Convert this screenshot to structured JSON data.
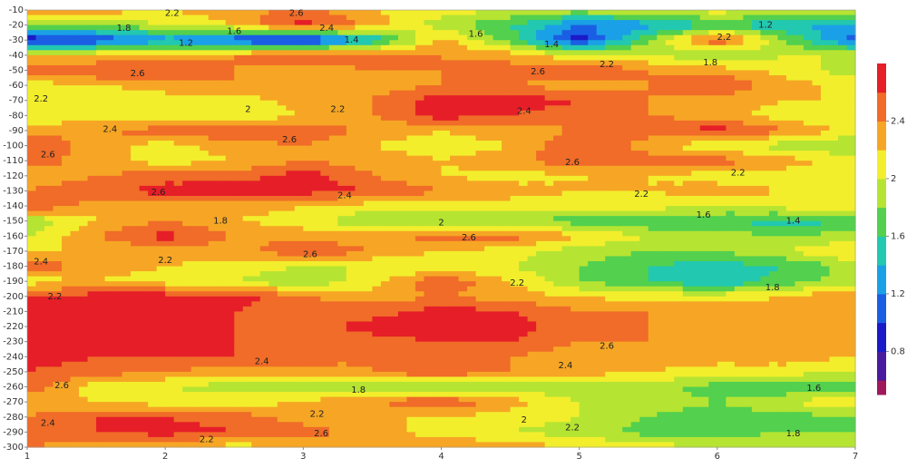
{
  "chart_data": {
    "type": "contour",
    "x": [
      1,
      1.5,
      2,
      2.5,
      3,
      3.5,
      4,
      4.5,
      5,
      5.5,
      6,
      6.5,
      7
    ],
    "y": [
      -10,
      -20,
      -30,
      -40,
      -50,
      -60,
      -70,
      -80,
      -90,
      -100,
      -110,
      -120,
      -130,
      -140,
      -150,
      -160,
      -170,
      -180,
      -190,
      -200,
      -210,
      -220,
      -230,
      -240,
      -250,
      -260,
      -270,
      -280,
      -290,
      -300
    ],
    "z": [
      [
        2.3,
        2.3,
        2.2,
        2.3,
        2.5,
        2.2,
        2.1,
        2.0,
        1.9,
        2.0,
        2.1,
        2.0,
        2.0
      ],
      [
        1.9,
        1.8,
        2.0,
        2.2,
        2.7,
        2.3,
        1.9,
        1.6,
        1.2,
        1.3,
        1.6,
        1.4,
        1.3
      ],
      [
        0.8,
        1.0,
        1.3,
        1.0,
        0.8,
        1.4,
        2.3,
        1.7,
        0.9,
        1.8,
        2.6,
        1.8,
        1.1
      ],
      [
        2.2,
        2.2,
        2.2,
        2.4,
        2.6,
        2.5,
        2.4,
        2.3,
        2.0,
        2.0,
        1.8,
        2.0,
        2.0
      ],
      [
        2.5,
        2.6,
        2.6,
        2.4,
        2.3,
        2.4,
        2.4,
        2.5,
        2.6,
        2.4,
        2.3,
        2.1,
        1.9
      ],
      [
        2.1,
        2.2,
        2.3,
        2.4,
        2.3,
        2.3,
        2.4,
        2.4,
        2.3,
        2.4,
        2.6,
        2.3,
        2.1
      ],
      [
        2.2,
        2.0,
        2.1,
        2.1,
        2.3,
        2.4,
        2.7,
        2.7,
        2.6,
        2.4,
        2.3,
        2.2,
        2.2
      ],
      [
        2.0,
        2.1,
        2.0,
        2.0,
        2.2,
        2.4,
        2.7,
        2.6,
        2.5,
        2.4,
        2.3,
        2.1,
        2.0
      ],
      [
        2.3,
        2.4,
        2.5,
        2.6,
        2.6,
        2.3,
        2.2,
        2.3,
        2.4,
        2.5,
        2.7,
        2.4,
        2.1
      ],
      [
        2.6,
        2.3,
        2.1,
        2.3,
        2.4,
        2.2,
        2.1,
        2.2,
        2.6,
        2.3,
        2.0,
        1.9,
        1.8
      ],
      [
        2.5,
        2.3,
        2.1,
        2.2,
        2.4,
        2.3,
        2.2,
        2.3,
        2.6,
        2.5,
        2.5,
        2.3,
        2.1
      ],
      [
        2.3,
        2.4,
        2.5,
        2.5,
        2.7,
        2.4,
        2.2,
        2.1,
        2.2,
        2.2,
        2.1,
        2.1,
        2.1
      ],
      [
        2.4,
        2.5,
        2.7,
        2.7,
        2.7,
        2.6,
        2.4,
        2.3,
        2.2,
        2.2,
        2.3,
        2.2,
        2.2
      ],
      [
        2.6,
        2.3,
        2.3,
        2.3,
        2.2,
        2.1,
        2.1,
        2.1,
        2.1,
        2.1,
        2.0,
        2.1,
        2.1
      ],
      [
        1.8,
        2.2,
        2.4,
        2.2,
        2.1,
        1.8,
        1.9,
        1.8,
        1.7,
        1.6,
        1.6,
        1.5,
        1.6
      ],
      [
        2.0,
        2.4,
        2.7,
        2.4,
        2.3,
        2.3,
        2.5,
        2.5,
        2.2,
        2.0,
        1.9,
        1.8,
        1.9
      ],
      [
        2.2,
        2.2,
        2.3,
        2.3,
        2.6,
        2.4,
        2.2,
        2.1,
        1.9,
        1.8,
        1.8,
        2.0,
        2.2
      ],
      [
        2.6,
        2.3,
        2.2,
        2.1,
        2.0,
        2.0,
        2.0,
        2.0,
        1.8,
        1.6,
        1.5,
        1.6,
        1.9
      ],
      [
        2.1,
        2.2,
        2.1,
        2.0,
        1.8,
        2.1,
        2.6,
        2.2,
        1.8,
        1.6,
        1.4,
        1.7,
        1.9
      ],
      [
        2.6,
        2.7,
        2.7,
        2.7,
        2.4,
        2.3,
        2.4,
        2.3,
        2.2,
        2.1,
        2.1,
        2.2,
        2.4
      ],
      [
        2.7,
        2.7,
        2.6,
        2.6,
        2.5,
        2.5,
        2.7,
        2.6,
        2.4,
        2.4,
        2.3,
        2.3,
        2.3
      ],
      [
        2.7,
        2.7,
        2.7,
        2.6,
        2.5,
        2.7,
        2.8,
        2.7,
        2.5,
        2.4,
        2.3,
        2.3,
        2.3
      ],
      [
        2.7,
        2.7,
        2.7,
        2.6,
        2.4,
        2.5,
        2.6,
        2.6,
        2.4,
        2.4,
        2.3,
        2.3,
        2.2
      ],
      [
        2.7,
        2.6,
        2.6,
        2.6,
        2.5,
        2.4,
        2.4,
        2.4,
        2.3,
        2.3,
        2.3,
        2.3,
        2.2
      ],
      [
        2.6,
        2.5,
        2.4,
        2.3,
        2.3,
        2.4,
        2.6,
        2.4,
        2.3,
        2.2,
        2.1,
        2.1,
        2.0
      ],
      [
        2.5,
        2.1,
        2.0,
        1.9,
        1.9,
        1.9,
        1.8,
        1.8,
        1.9,
        1.9,
        1.7,
        1.6,
        1.6
      ],
      [
        2.3,
        2.2,
        2.1,
        2.1,
        2.2,
        2.4,
        2.6,
        2.3,
        2.0,
        1.9,
        1.8,
        2.0,
        2.2
      ],
      [
        2.4,
        2.6,
        2.6,
        2.5,
        2.3,
        2.2,
        2.2,
        2.1,
        2.0,
        1.8,
        1.7,
        1.7,
        1.8
      ],
      [
        2.5,
        2.6,
        2.7,
        2.6,
        2.5,
        2.3,
        2.1,
        2.0,
        1.9,
        1.7,
        1.7,
        1.8,
        1.8
      ],
      [
        2.4,
        2.3,
        2.2,
        2.1,
        2.2,
        2.3,
        2.4,
        2.3,
        2.2,
        2.1,
        2.0,
        2.0,
        1.9
      ]
    ],
    "levels": [
      0.5,
      0.6,
      0.8,
      1.0,
      1.2,
      1.4,
      1.6,
      1.8,
      2.0,
      2.2,
      2.4,
      2.6,
      2.8
    ],
    "colors": [
      "#a0185c",
      "#4a1a9e",
      "#1a1ac8",
      "#1a5ee4",
      "#1aa0e6",
      "#22c8b0",
      "#52d04e",
      "#b6e432",
      "#f2ee2c",
      "#f6a624",
      "#f06c28",
      "#e61e28"
    ],
    "xlim": [
      1,
      7
    ],
    "xticks": [
      1,
      2,
      3,
      4,
      5,
      6,
      7
    ],
    "ylim": [
      -300,
      -10
    ],
    "yticks": [
      -10,
      -20,
      -30,
      -40,
      -50,
      -60,
      -70,
      -80,
      -90,
      -100,
      -110,
      -120,
      -130,
      -140,
      -150,
      -160,
      -170,
      -180,
      -190,
      -200,
      -210,
      -220,
      -230,
      -240,
      -250,
      -260,
      -270,
      -280,
      -290,
      -300
    ],
    "zlim": [
      0.5,
      2.8
    ],
    "zticks": [
      0.8,
      1.2,
      1.6,
      2,
      2.4
    ],
    "contour_labels": [
      {
        "x": 2.05,
        "y": -12,
        "level": 2.2
      },
      {
        "x": 1.7,
        "y": -22,
        "level": 1.8
      },
      {
        "x": 2.5,
        "y": -24,
        "level": 1.6
      },
      {
        "x": 2.95,
        "y": -12,
        "level": 2.6
      },
      {
        "x": 3.17,
        "y": -22,
        "level": 2.4
      },
      {
        "x": 3.35,
        "y": -30,
        "level": 1.4
      },
      {
        "x": 2.15,
        "y": -32,
        "level": 1.2
      },
      {
        "x": 4.25,
        "y": -26,
        "level": 1.6
      },
      {
        "x": 4.8,
        "y": -33,
        "level": 1.4
      },
      {
        "x": 6.35,
        "y": -20,
        "level": 1.2
      },
      {
        "x": 6.05,
        "y": -28,
        "level": 2.2
      },
      {
        "x": 5.95,
        "y": -45,
        "level": 1.8
      },
      {
        "x": 5.2,
        "y": -46,
        "level": 2.2
      },
      {
        "x": 1.8,
        "y": -52,
        "level": 2.6
      },
      {
        "x": 4.7,
        "y": -51,
        "level": 2.6
      },
      {
        "x": 1.1,
        "y": -69,
        "level": 2.2
      },
      {
        "x": 2.6,
        "y": -76,
        "level": 2
      },
      {
        "x": 3.25,
        "y": -76,
        "level": 2.2
      },
      {
        "x": 4.6,
        "y": -77,
        "level": 2.4
      },
      {
        "x": 1.6,
        "y": -89,
        "level": 2.4
      },
      {
        "x": 2.9,
        "y": -96,
        "level": 2.6
      },
      {
        "x": 1.15,
        "y": -106,
        "level": 2.6
      },
      {
        "x": 4.95,
        "y": -111,
        "level": 2.6
      },
      {
        "x": 6.15,
        "y": -118,
        "level": 2.2
      },
      {
        "x": 1.95,
        "y": -131,
        "level": 2.6
      },
      {
        "x": 3.3,
        "y": -133,
        "level": 2.4
      },
      {
        "x": 5.45,
        "y": -132,
        "level": 2.2
      },
      {
        "x": 2.4,
        "y": -150,
        "level": 1.8
      },
      {
        "x": 4,
        "y": -151,
        "level": 2
      },
      {
        "x": 5.9,
        "y": -146,
        "level": 1.6
      },
      {
        "x": 6.55,
        "y": -150,
        "level": 1.4
      },
      {
        "x": 3.05,
        "y": -172,
        "level": 2.6
      },
      {
        "x": 2,
        "y": -176,
        "level": 2.2
      },
      {
        "x": 4.2,
        "y": -161,
        "level": 2.6
      },
      {
        "x": 1.1,
        "y": -177,
        "level": 2.4
      },
      {
        "x": 4.55,
        "y": -191,
        "level": 2.2
      },
      {
        "x": 1.2,
        "y": -200,
        "level": 2.2
      },
      {
        "x": 6.4,
        "y": -194,
        "level": 1.8
      },
      {
        "x": 5.2,
        "y": -233,
        "level": 2.6
      },
      {
        "x": 2.7,
        "y": -243,
        "level": 2.4
      },
      {
        "x": 4.9,
        "y": -246,
        "level": 2.4
      },
      {
        "x": 1.25,
        "y": -259,
        "level": 2.6
      },
      {
        "x": 3.4,
        "y": -262,
        "level": 1.8
      },
      {
        "x": 6.7,
        "y": -261,
        "level": 1.6
      },
      {
        "x": 3.1,
        "y": -278,
        "level": 2.2
      },
      {
        "x": 4.6,
        "y": -282,
        "level": 2
      },
      {
        "x": 1.15,
        "y": -284,
        "level": 2.4
      },
      {
        "x": 3.13,
        "y": -291,
        "level": 2.6
      },
      {
        "x": 2.3,
        "y": -295,
        "level": 2.2
      },
      {
        "x": 4.95,
        "y": -287,
        "level": 2.2
      },
      {
        "x": 6.55,
        "y": -291,
        "level": 1.8
      }
    ]
  }
}
